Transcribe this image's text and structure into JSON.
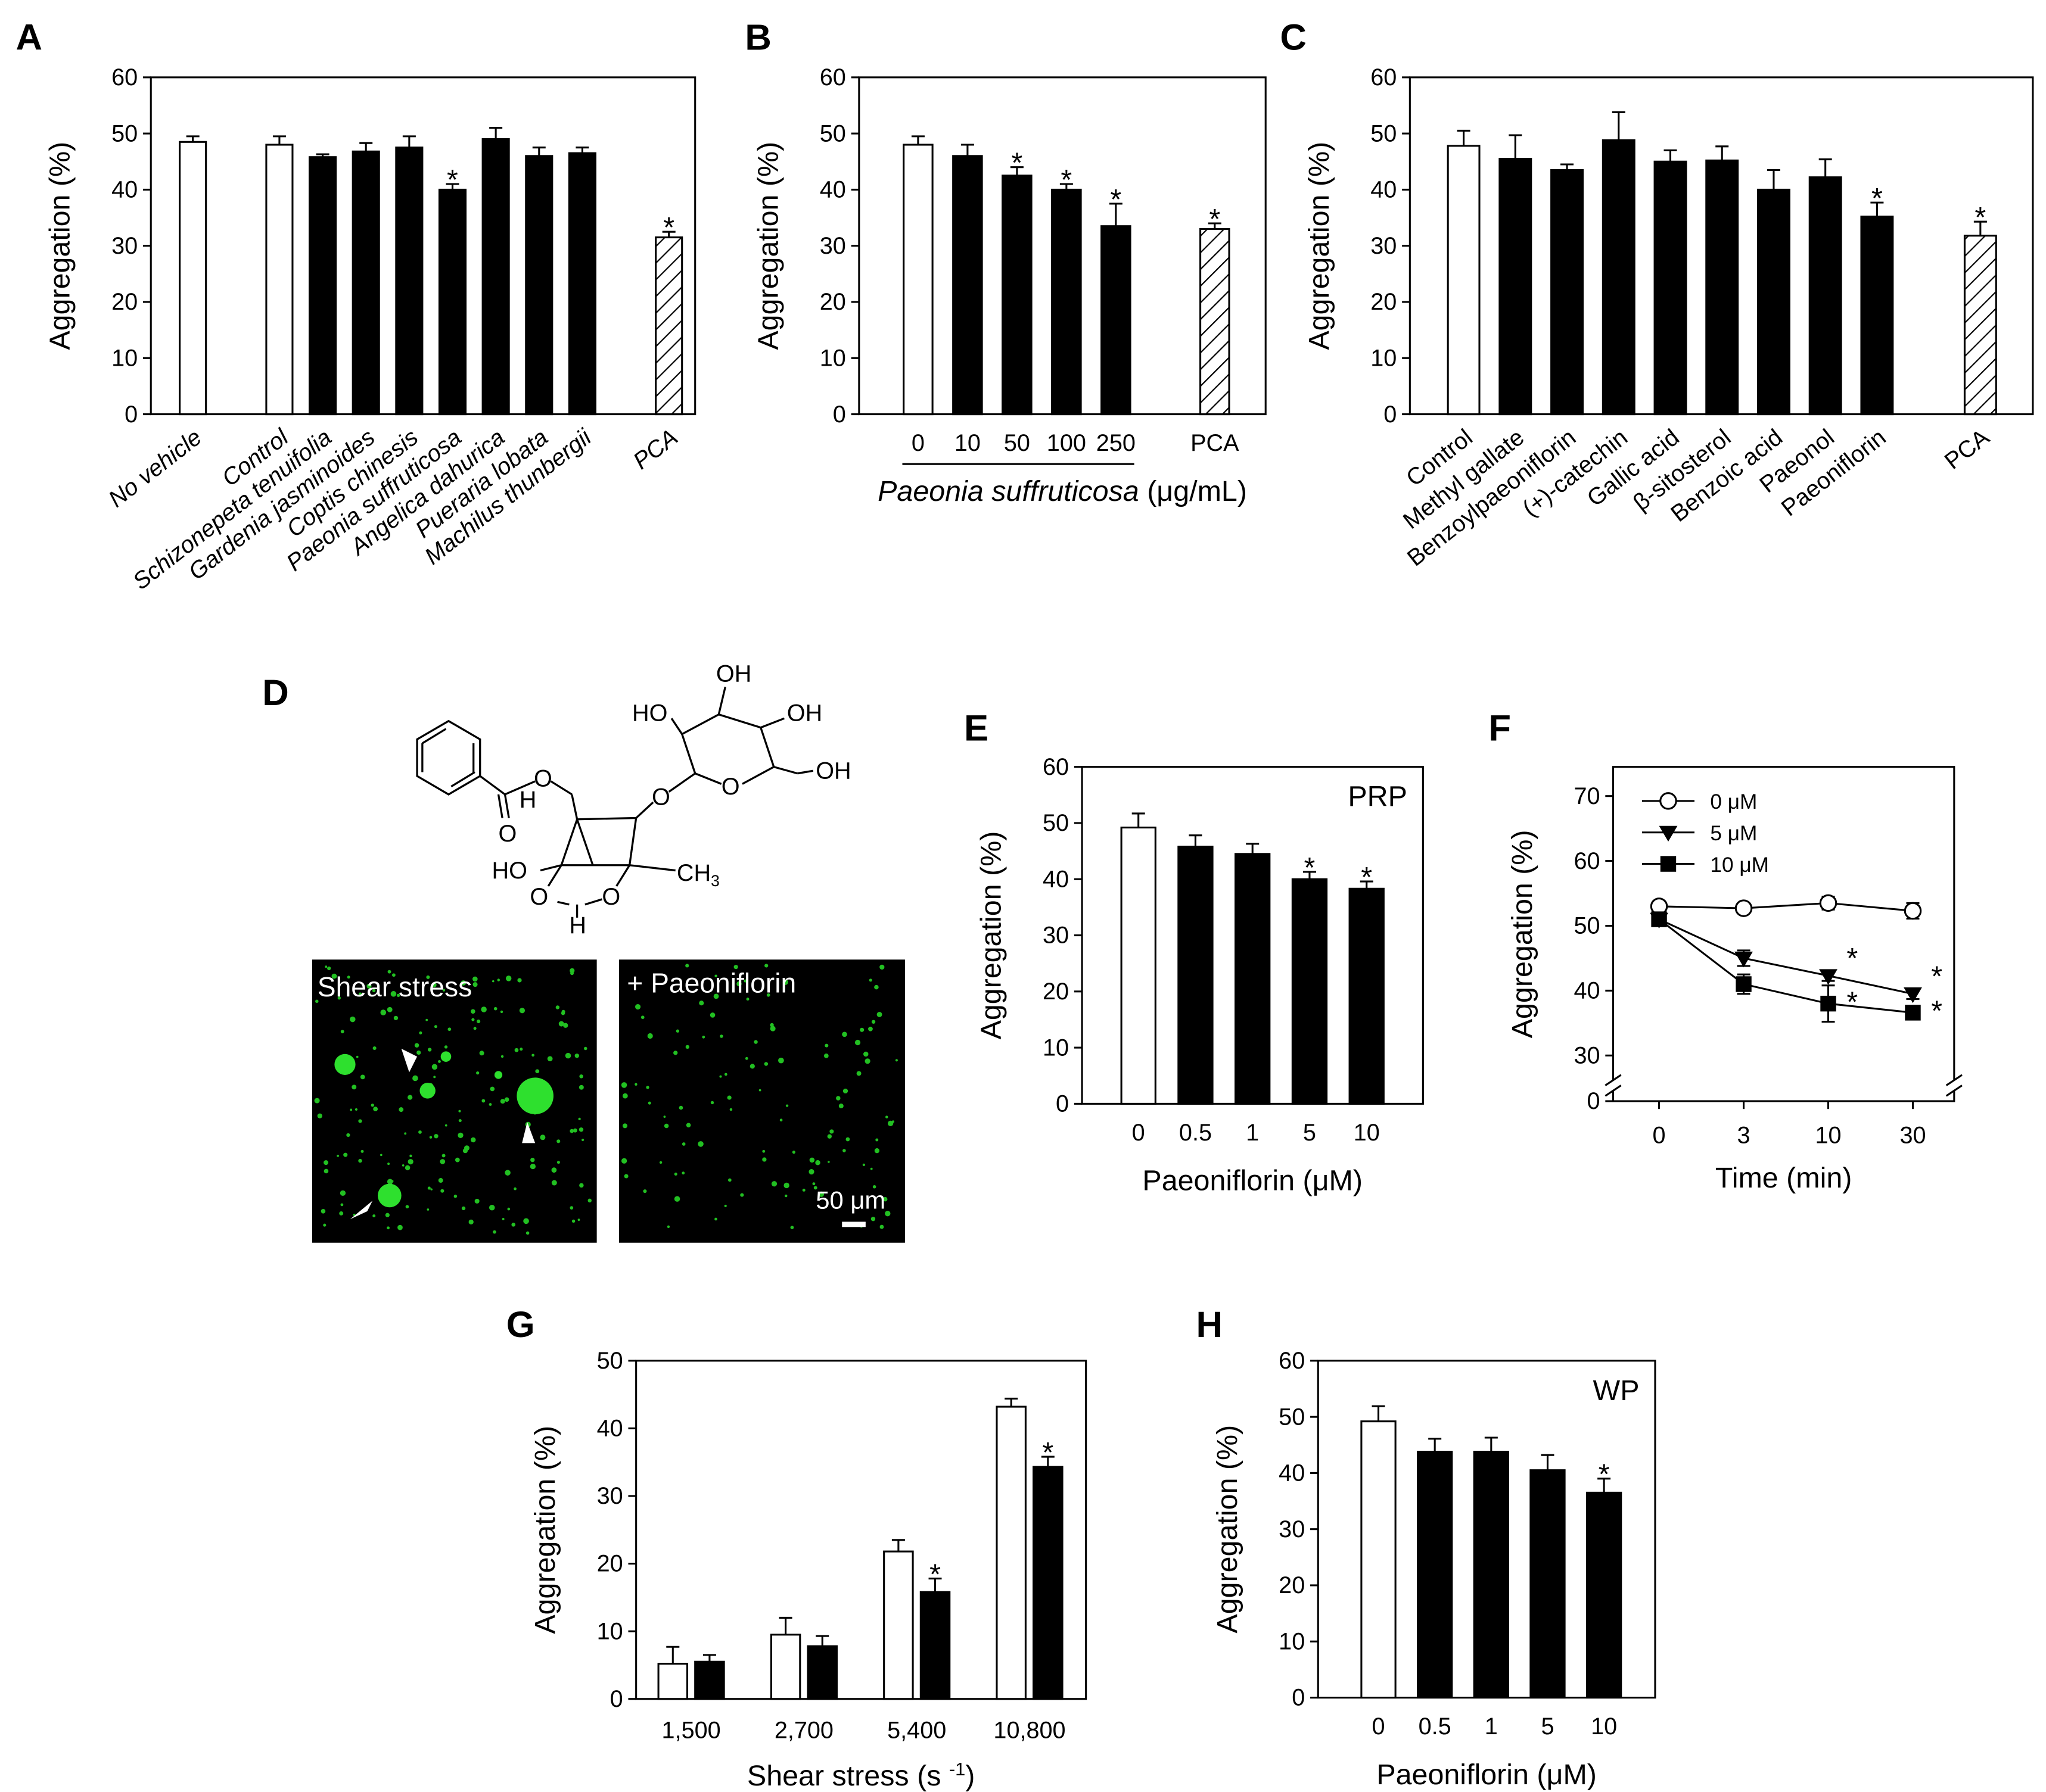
{
  "figure": {
    "structure": {
      "oh_top": "OH",
      "ho_left": "HO",
      "oh_right": "OH",
      "oh_ch2": "OH",
      "o_ester": "O",
      "h_left": "H",
      "o_carbonyl": "O",
      "o_link": "O",
      "o_ring": "O",
      "ho_cage": "HO",
      "ch": "CH",
      "ch_sub": "3",
      "o_cage1": "O",
      "o_cage2": "O",
      "h_bottom": "H"
    },
    "micrographs": [
      "Shear stress",
      "+ Paeoniflorin"
    ],
    "scale_bar": "50 μm",
    "panel": "D"
  },
  "chart_data": [
    {
      "panel": "A",
      "type": "bar",
      "ylabel": "Aggregation (%)",
      "categories": [
        "No vehicle",
        "Control",
        "Schizonepeta tenuifolia",
        "Gardenia jasminoides",
        "Coptis chinesis",
        "Paeonia suffruticosa",
        "Angelica dahurica",
        "Pueraria lobata",
        "Machilus thunbergii",
        "PCA"
      ],
      "values": [
        48.5,
        48,
        45.8,
        46.8,
        47.5,
        40,
        49,
        46,
        46.5,
        31.5
      ],
      "errors": [
        1,
        1.5,
        0.5,
        1.5,
        2,
        1,
        2,
        1.5,
        1,
        1
      ],
      "bar_fills": [
        "open",
        "open",
        "solid",
        "solid",
        "solid",
        "solid",
        "solid",
        "solid",
        "solid",
        "hatched"
      ],
      "stars": [
        false,
        false,
        false,
        false,
        false,
        true,
        false,
        false,
        false,
        true
      ],
      "star": "*",
      "label_style": "italic-rotated",
      "ylim": [
        0,
        60
      ],
      "yticks": [
        0,
        10,
        20,
        30,
        40,
        50,
        60
      ]
    },
    {
      "panel": "B",
      "type": "bar",
      "ylabel": "Aggregation (%)",
      "categories": [
        "0",
        "10",
        "50",
        "100",
        "250",
        "PCA"
      ],
      "values": [
        48,
        46,
        42.5,
        40,
        33.5,
        33
      ],
      "errors": [
        1.5,
        2,
        1.5,
        1,
        4,
        1
      ],
      "bar_fills": [
        "open",
        "solid",
        "solid",
        "solid",
        "solid",
        "hatched"
      ],
      "stars": [
        false,
        false,
        true,
        true,
        true,
        true
      ],
      "star": "*",
      "xlabel": [
        {
          "text": "Paeonia suffruticosa",
          "style": "italic"
        },
        {
          "text": " (μg/mL)",
          "style": "normal"
        }
      ],
      "label_style": "plain",
      "ylim": [
        0,
        60
      ],
      "yticks": [
        0,
        10,
        20,
        30,
        40,
        50,
        60
      ]
    },
    {
      "panel": "C",
      "type": "bar",
      "ylabel": "Aggregation (%)",
      "categories": [
        "Control",
        "Methyl gallate",
        "Benzoylpaeoniflorin",
        "(+)-catechin",
        "Gallic acid",
        "β-sitosterol",
        "Benzoic acid",
        "Paeonol",
        "Paeoniflorin",
        "PCA"
      ],
      "values": [
        47.8,
        45.5,
        43.5,
        48.8,
        45,
        45.2,
        40,
        42.2,
        35.2,
        31.8
      ],
      "errors": [
        2.7,
        4.2,
        1,
        5,
        2,
        2.5,
        3.5,
        3.2,
        2.5,
        2.5
      ],
      "bar_fills": [
        "open",
        "solid",
        "solid",
        "solid",
        "solid",
        "solid",
        "solid",
        "solid",
        "solid",
        "hatched"
      ],
      "stars": [
        false,
        false,
        false,
        false,
        false,
        false,
        false,
        false,
        true,
        true
      ],
      "star": "*",
      "label_style": "rotated",
      "ylim": [
        0,
        60
      ],
      "yticks": [
        0,
        10,
        20,
        30,
        40,
        50,
        60
      ]
    },
    {
      "panel": "E",
      "type": "bar",
      "ylabel": "Aggregation (%)",
      "annotation": "PRP",
      "categories": [
        "0",
        "0.5",
        "1",
        "5",
        "10"
      ],
      "values": [
        49.2,
        45.8,
        44.5,
        40,
        38.3
      ],
      "errors": [
        2.5,
        2,
        1.8,
        1.3,
        1.3
      ],
      "bar_fills": [
        "open",
        "solid",
        "solid",
        "solid",
        "solid"
      ],
      "stars": [
        false,
        false,
        false,
        true,
        true
      ],
      "star": "*",
      "xlabel": [
        {
          "text": "Paeoniflorin (μM)",
          "style": "normal"
        }
      ],
      "label_style": "plain",
      "ylim": [
        0,
        60
      ],
      "yticks": [
        0,
        10,
        20,
        30,
        40,
        50,
        60
      ]
    },
    {
      "panel": "F",
      "type": "line",
      "ylabel": "Aggregation (%)",
      "categories": [
        "0",
        "3",
        "10",
        "30"
      ],
      "series": [
        {
          "name": "0 μM",
          "marker": "circle-open",
          "values": [
            53,
            52.7,
            53.5,
            52.3
          ],
          "errors": [
            0.8,
            0.6,
            1,
            1.2
          ],
          "stars": [
            false,
            false,
            false,
            false
          ]
        },
        {
          "name": "5 μM",
          "marker": "triangle-down",
          "values": [
            51,
            45,
            42.3,
            39.5
          ],
          "errors": [
            0.8,
            1.2,
            0.8,
            0.8
          ],
          "stars": [
            false,
            false,
            true,
            true
          ]
        },
        {
          "name": "10 μM",
          "marker": "square",
          "values": [
            51,
            41,
            38,
            36.6
          ],
          "errors": [
            1,
            1.5,
            2.8,
            1
          ],
          "stars": [
            false,
            false,
            true,
            true
          ]
        }
      ],
      "star": "*",
      "xlabel": [
        {
          "text": "Time (min)",
          "style": "normal"
        }
      ],
      "ylim": [
        0,
        74.5
      ],
      "ybreak": [
        0,
        27
      ],
      "yticks": [
        0,
        30,
        40,
        50,
        60,
        70
      ]
    },
    {
      "panel": "G",
      "type": "grouped_bar",
      "ylabel": "Aggregation (%)",
      "categories": [
        "1,500",
        "2,700",
        "5,400",
        "10,800"
      ],
      "series": [
        {
          "fill": "open",
          "values": [
            5.2,
            9.5,
            21.8,
            43.2
          ],
          "errors": [
            2.5,
            2.5,
            1.7,
            1.2
          ],
          "stars": [
            false,
            false,
            false,
            false
          ]
        },
        {
          "fill": "solid",
          "values": [
            5.5,
            7.8,
            15.8,
            34.3
          ],
          "errors": [
            1,
            1.5,
            2,
            1.5
          ],
          "stars": [
            false,
            false,
            true,
            true
          ]
        }
      ],
      "star": "*",
      "xlabel": [
        {
          "text": "Shear stress (s ",
          "style": "normal"
        },
        {
          "text": "-1",
          "style": "sup"
        },
        {
          "text": ")",
          "style": "normal"
        }
      ],
      "ylim": [
        0,
        50
      ],
      "yticks": [
        0,
        10,
        20,
        30,
        40,
        50
      ]
    },
    {
      "panel": "H",
      "type": "bar",
      "ylabel": "Aggregation (%)",
      "annotation": "WP",
      "categories": [
        "0",
        "0.5",
        "1",
        "5",
        "10"
      ],
      "values": [
        49.2,
        43.8,
        43.8,
        40.5,
        36.5
      ],
      "errors": [
        2.7,
        2.3,
        2.5,
        2.7,
        2.5
      ],
      "bar_fills": [
        "open",
        "solid",
        "solid",
        "solid",
        "solid"
      ],
      "stars": [
        false,
        false,
        false,
        false,
        true
      ],
      "star": "*",
      "xlabel": [
        {
          "text": "Paeoniflorin (μM)",
          "style": "normal"
        }
      ],
      "label_style": "plain",
      "ylim": [
        0,
        60
      ],
      "yticks": [
        0,
        10,
        20,
        30,
        40,
        50,
        60
      ]
    }
  ]
}
